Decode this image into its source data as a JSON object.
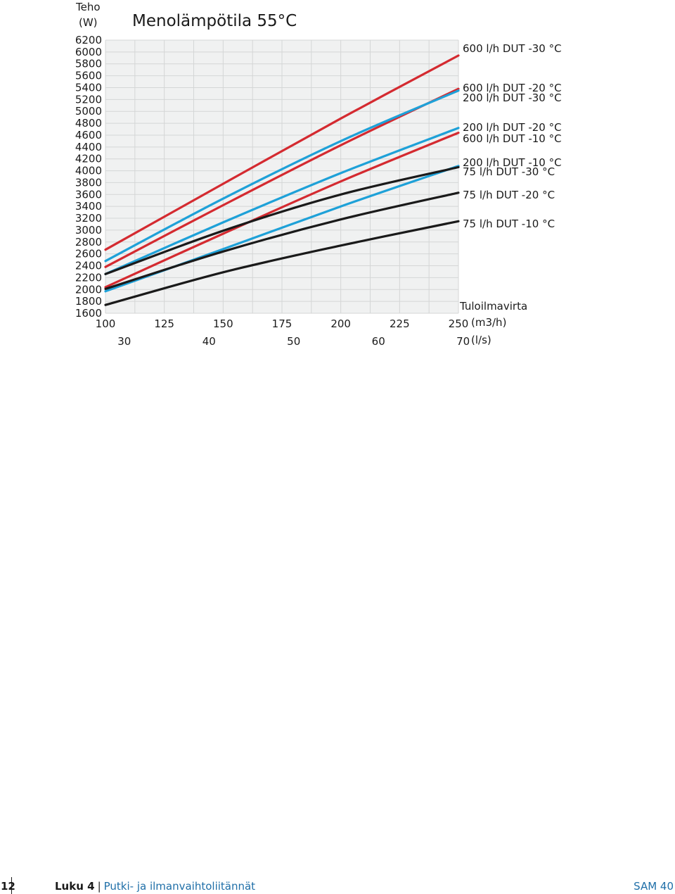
{
  "chart_data": {
    "type": "line",
    "title": "Menolämpötila 55°C",
    "ylabel_line1": "Teho",
    "ylabel_line2": "(W)",
    "xlabel": "Tuloilmavirta",
    "x_unit_primary": "(m3/h)",
    "x_unit_secondary": "(l/s)",
    "xlim": [
      100,
      250
    ],
    "ylim": [
      1600,
      6200
    ],
    "x_ticks": [
      100,
      125,
      150,
      175,
      200,
      225,
      250
    ],
    "x_ticks_secondary": [
      30,
      40,
      50,
      60,
      70
    ],
    "y_ticks": [
      1600,
      1800,
      2000,
      2200,
      2400,
      2600,
      2800,
      3000,
      3200,
      3400,
      3600,
      3800,
      4000,
      4200,
      4400,
      4600,
      4800,
      5000,
      5200,
      5400,
      5600,
      5800,
      6000,
      6200
    ],
    "grid": true,
    "legend_placement": "right (labels at line ends)",
    "series": [
      {
        "name": "600 l/h DUT -30 °C",
        "color": "#d42a30",
        "x": [
          100,
          150,
          200,
          250
        ],
        "y": [
          2670,
          3780,
          4880,
          5940
        ]
      },
      {
        "name": "600 l/h DUT -20 °C",
        "color": "#d42a30",
        "x": [
          100,
          150,
          200,
          250
        ],
        "y": [
          2380,
          3420,
          4430,
          5380
        ]
      },
      {
        "name": "200 l/h DUT -30 °C",
        "color": "#1ea1d8",
        "x": [
          100,
          150,
          200,
          250
        ],
        "y": [
          2480,
          3530,
          4500,
          5350
        ]
      },
      {
        "name": "200 l/h DUT -20 °C",
        "color": "#1ea1d8",
        "x": [
          100,
          150,
          200,
          250
        ],
        "y": [
          2260,
          3130,
          3960,
          4720
        ]
      },
      {
        "name": "600 l/h DUT -10 °C",
        "color": "#d42a30",
        "x": [
          100,
          150,
          200,
          250
        ],
        "y": [
          2040,
          2940,
          3820,
          4640
        ]
      },
      {
        "name": "200 l/h DUT -10 °C",
        "color": "#1ea1d8",
        "x": [
          100,
          150,
          200,
          250
        ],
        "y": [
          1970,
          2680,
          3400,
          4080
        ]
      },
      {
        "name": "75 l/h DUT -30 °C",
        "color": "#1a1a1a",
        "x": [
          100,
          150,
          200,
          250
        ],
        "y": [
          2260,
          2990,
          3600,
          4060
        ]
      },
      {
        "name": "75 l/h DUT -20 °C",
        "color": "#1a1a1a",
        "x": [
          100,
          150,
          200,
          250
        ],
        "y": [
          2010,
          2640,
          3180,
          3630
        ]
      },
      {
        "name": "75 l/h DUT -10 °C",
        "color": "#1a1a1a",
        "x": [
          100,
          150,
          200,
          250
        ],
        "y": [
          1740,
          2290,
          2740,
          3150
        ]
      }
    ]
  },
  "footer": {
    "page_number": "12",
    "chapter_label": "Luku 4",
    "separator": "|",
    "chapter_title": "Putki- ja ilmanvaihtoliitännät",
    "product": "SAM 40"
  }
}
